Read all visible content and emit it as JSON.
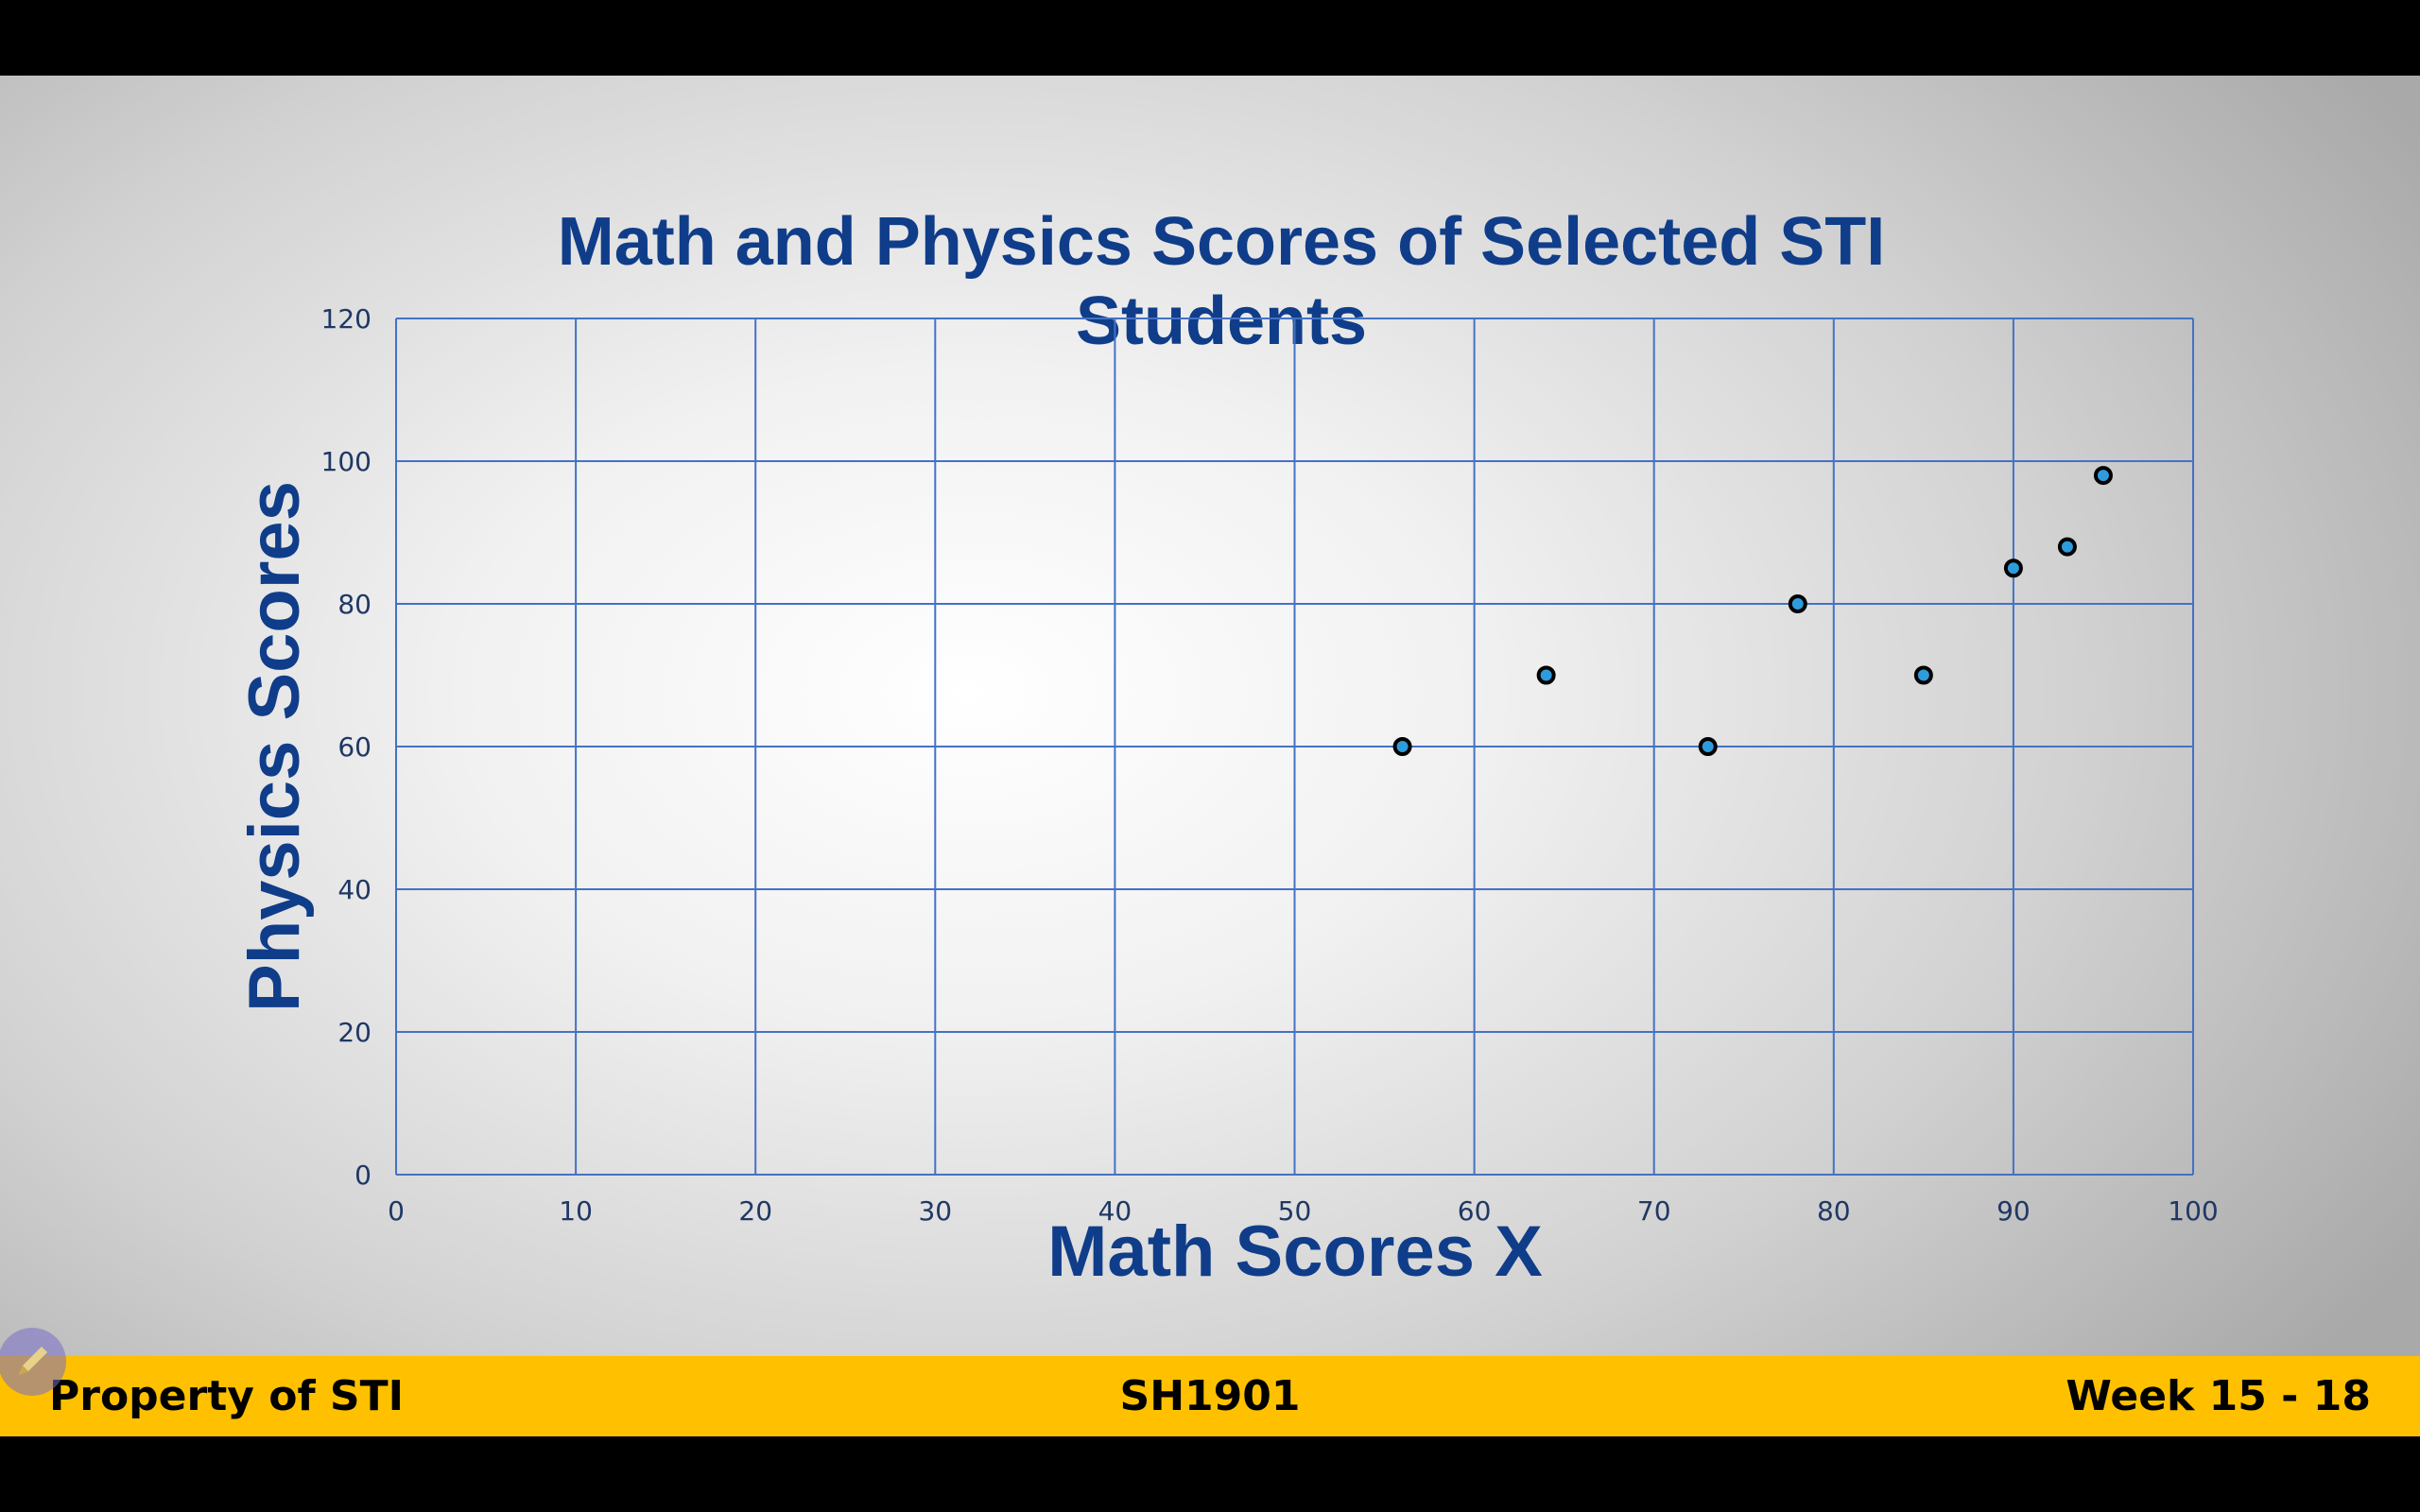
{
  "chart_data": {
    "type": "scatter",
    "title": "Math and Physics Scores of Selected STI Students",
    "title_lines": [
      "Math and Physics Scores of Selected STI",
      "Students"
    ],
    "xlabel": "Math Scores X",
    "ylabel": "Physics Scores",
    "xlim": [
      0,
      100
    ],
    "ylim": [
      0,
      120
    ],
    "x_ticks": [
      0,
      10,
      20,
      30,
      40,
      50,
      60,
      70,
      80,
      90,
      100
    ],
    "y_ticks": [
      0,
      20,
      40,
      60,
      80,
      100,
      120
    ],
    "grid": true,
    "points": [
      {
        "x": 56,
        "y": 60
      },
      {
        "x": 64,
        "y": 70
      },
      {
        "x": 73,
        "y": 60
      },
      {
        "x": 78,
        "y": 80
      },
      {
        "x": 85,
        "y": 70
      },
      {
        "x": 90,
        "y": 85
      },
      {
        "x": 93,
        "y": 88
      },
      {
        "x": 95,
        "y": 98
      }
    ]
  },
  "colors": {
    "title": "#0f3d8a",
    "grid": "#4472c4",
    "tick": "#1f3864",
    "marker_fill": "#2e9bdc",
    "marker_stroke": "#000000",
    "footer_bg": "#ffc000"
  },
  "footer": {
    "left": "Property of STI",
    "center": "SH1901",
    "right": "Week 15 - 18"
  },
  "icons": {
    "pen": "pen-icon"
  }
}
